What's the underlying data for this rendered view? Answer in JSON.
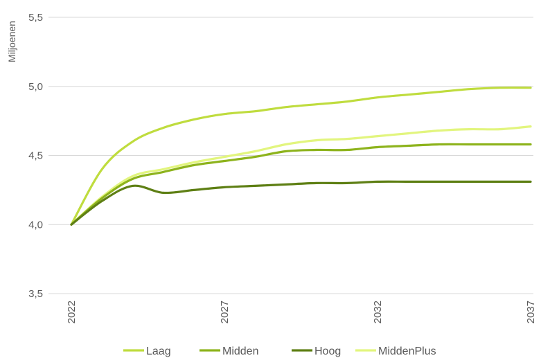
{
  "chart_data": {
    "type": "line",
    "ylabel": "Miljoenen",
    "xlabel": "",
    "title": "",
    "ylim": [
      3.5,
      5.5
    ],
    "yticks": [
      3.5,
      4.0,
      4.5,
      5.0,
      5.5
    ],
    "ytick_labels": [
      "3,5",
      "4,0",
      "4,5",
      "5,0",
      "5,5"
    ],
    "xlim": [
      2022,
      2037
    ],
    "xticks": [
      2022,
      2027,
      2032,
      2037
    ],
    "xtick_labels": [
      "2022",
      "2027",
      "2032",
      "2037"
    ],
    "grid": "horizontal",
    "legend_position": "bottom",
    "x": [
      2022,
      2023,
      2024,
      2025,
      2026,
      2027,
      2028,
      2029,
      2030,
      2031,
      2032,
      2033,
      2034,
      2035,
      2036,
      2037
    ],
    "series": [
      {
        "name": "Laag",
        "color": "#bfdc3e",
        "values": [
          4.0,
          4.4,
          4.6,
          4.7,
          4.76,
          4.8,
          4.82,
          4.85,
          4.87,
          4.89,
          4.92,
          4.94,
          4.96,
          4.98,
          4.99,
          4.99
        ]
      },
      {
        "name": "Midden",
        "color": "#8db31c",
        "values": [
          4.0,
          4.19,
          4.33,
          4.38,
          4.43,
          4.46,
          4.49,
          4.53,
          4.54,
          4.54,
          4.56,
          4.57,
          4.58,
          4.58,
          4.58,
          4.58
        ]
      },
      {
        "name": "Hoog",
        "color": "#5e7f14",
        "values": [
          4.0,
          4.17,
          4.28,
          4.23,
          4.25,
          4.27,
          4.28,
          4.29,
          4.3,
          4.3,
          4.31,
          4.31,
          4.31,
          4.31,
          4.31,
          4.31
        ]
      },
      {
        "name": "MiddenPlus",
        "color": "#e2f57e",
        "values": [
          4.0,
          4.2,
          4.35,
          4.4,
          4.45,
          4.49,
          4.53,
          4.58,
          4.61,
          4.62,
          4.64,
          4.66,
          4.68,
          4.69,
          4.69,
          4.71
        ]
      }
    ]
  }
}
